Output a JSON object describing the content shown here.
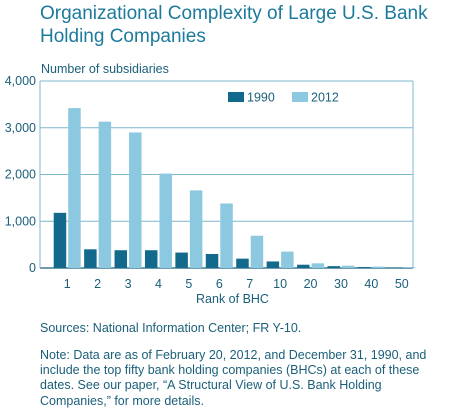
{
  "title_lines": [
    "Organizational Complexity of Large U.S. Bank",
    "Holding Companies"
  ],
  "sources": "Sources: National Information Center; FR Y-10.",
  "note": "Note: Data are as of February 20, 2012, and December 31, 1990, and include the top fifty bank holding companies (BHCs) at each of these dates. See our paper, “A Structural View of U.S. Bank Holding Companies,” for more details.",
  "colors": {
    "series_1990": "#13698c",
    "series_2012": "#8cc8e0",
    "grid": "#7fb7cf",
    "text": "#1b5f7a"
  },
  "chart_data": {
    "type": "bar",
    "xlabel": "Rank of BHC",
    "ylabel": "Number of subsidiaries",
    "ylim": [
      0,
      4000
    ],
    "yticks": [
      0,
      1000,
      2000,
      3000,
      4000
    ],
    "ytick_labels": [
      "0",
      "1,000",
      "2,000",
      "3,000",
      "4,000"
    ],
    "grid": true,
    "legend_position": "top-right",
    "categories": [
      "1",
      "2",
      "3",
      "4",
      "5",
      "6",
      "7",
      "10",
      "20",
      "30",
      "40",
      "50"
    ],
    "series": [
      {
        "name": "1990",
        "values": [
          1180,
          400,
          380,
          380,
          330,
          300,
          200,
          140,
          70,
          40,
          20,
          10
        ]
      },
      {
        "name": "2012",
        "values": [
          3420,
          3130,
          2900,
          2020,
          1660,
          1380,
          690,
          350,
          100,
          50,
          30,
          20
        ]
      }
    ]
  }
}
